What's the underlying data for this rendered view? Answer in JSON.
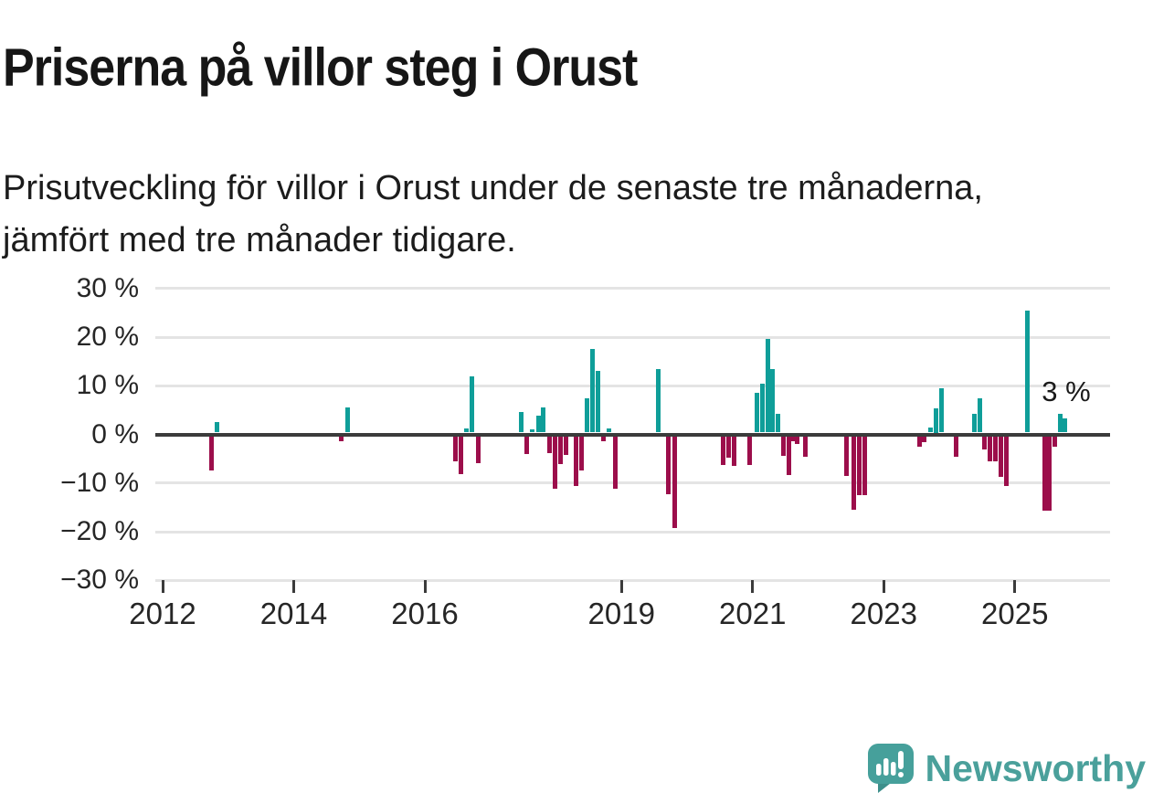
{
  "header": {
    "title": "Priserna på villor steg i Orust",
    "subtitle": "Prisutveckling för villor i Orust under de senaste tre månaderna, jämfört med tre månader tidigare."
  },
  "chart_data": {
    "type": "bar",
    "title": "Priserna på villor steg i Orust",
    "subtitle": "Prisutveckling för villor i Orust under de senaste tre månaderna, jämfört med tre månader tidigare.",
    "xlabel": "",
    "ylabel": "",
    "unit": "% förändring",
    "x_format": "decimal_year",
    "xlim": [
      2011.89,
      2026.45
    ],
    "ylim": [
      -30,
      30
    ],
    "grid": true,
    "legend": "none",
    "colors": {
      "positive": "#0f9e99",
      "negative": "#9c0e4b",
      "zero_line": "#3b3b3b",
      "gridline": "#e4e4e4"
    },
    "yticks": [
      {
        "v": 30,
        "label": "30 %"
      },
      {
        "v": 20,
        "label": "20 %"
      },
      {
        "v": 10,
        "label": "10 %"
      },
      {
        "v": 0,
        "label": "0 %"
      },
      {
        "v": -10,
        "label": "−10 %"
      },
      {
        "v": -20,
        "label": "−20 %"
      },
      {
        "v": -30,
        "label": "−30 %"
      }
    ],
    "xticks": [
      {
        "v": 2012,
        "label": "2012"
      },
      {
        "v": 2014,
        "label": "2014"
      },
      {
        "v": 2016,
        "label": "2016"
      },
      {
        "v": 2019,
        "label": "2019"
      },
      {
        "v": 2021,
        "label": "2021"
      },
      {
        "v": 2023,
        "label": "2023"
      },
      {
        "v": 2025,
        "label": "2025"
      }
    ],
    "bars_format": "[decimal_year, percent_change]",
    "bars": [
      [
        2012.75,
        -7.0
      ],
      [
        2012.83,
        2.1
      ],
      [
        2014.73,
        -1.1
      ],
      [
        2014.82,
        5.2
      ],
      [
        2016.47,
        -5.1
      ],
      [
        2016.55,
        -7.8
      ],
      [
        2016.64,
        0.9
      ],
      [
        2016.72,
        11.6
      ],
      [
        2016.81,
        -5.5
      ],
      [
        2017.47,
        4.3
      ],
      [
        2017.56,
        -3.6
      ],
      [
        2017.64,
        0.7
      ],
      [
        2017.73,
        3.5
      ],
      [
        2017.81,
        5.2
      ],
      [
        2017.9,
        -3.4
      ],
      [
        2017.98,
        -10.8
      ],
      [
        2018.07,
        -5.8
      ],
      [
        2018.15,
        -3.9
      ],
      [
        2018.31,
        -10.2
      ],
      [
        2018.39,
        -7.0
      ],
      [
        2018.48,
        7.0
      ],
      [
        2018.56,
        17.2
      ],
      [
        2018.64,
        12.6
      ],
      [
        2018.72,
        -1.0
      ],
      [
        2018.81,
        0.8
      ],
      [
        2018.9,
        -10.8
      ],
      [
        2019.56,
        13.0
      ],
      [
        2019.72,
        -12.0
      ],
      [
        2019.81,
        -18.8
      ],
      [
        2020.55,
        -5.9
      ],
      [
        2020.64,
        -4.5
      ],
      [
        2020.72,
        -6.1
      ],
      [
        2020.95,
        -6.0
      ],
      [
        2021.07,
        8.2
      ],
      [
        2021.15,
        10.1
      ],
      [
        2021.23,
        19.2
      ],
      [
        2021.31,
        13.1
      ],
      [
        2021.39,
        3.8
      ],
      [
        2021.47,
        -4.0
      ],
      [
        2021.55,
        -7.9
      ],
      [
        2021.62,
        -1.1
      ],
      [
        2021.68,
        -1.6
      ],
      [
        2021.8,
        -4.2
      ],
      [
        2022.43,
        -8.2
      ],
      [
        2022.55,
        -15.2
      ],
      [
        2022.63,
        -12.1
      ],
      [
        2022.71,
        -12.1
      ],
      [
        2023.55,
        -2.1
      ],
      [
        2023.62,
        -1.2
      ],
      [
        2023.71,
        1.0
      ],
      [
        2023.8,
        5.0
      ],
      [
        2023.88,
        9.1
      ],
      [
        2024.11,
        -4.2
      ],
      [
        2024.38,
        3.9
      ],
      [
        2024.46,
        7.0
      ],
      [
        2024.54,
        -2.7
      ],
      [
        2024.62,
        -5.2
      ],
      [
        2024.7,
        -5.2
      ],
      [
        2024.79,
        -8.4
      ],
      [
        2024.87,
        -10.2
      ],
      [
        2025.19,
        25.1
      ],
      [
        2025.45,
        -15.3
      ],
      [
        2025.53,
        -15.3
      ],
      [
        2025.61,
        -2.2
      ],
      [
        2025.69,
        3.8
      ],
      [
        2025.77,
        2.9
      ]
    ],
    "annotation": {
      "text": "3 %",
      "x": 2025.78,
      "y_pct": 8.8
    }
  },
  "footer": {
    "brand": "Newsworthy",
    "logo_icon": "newsworthy-speech-bubble-chart-icon"
  }
}
